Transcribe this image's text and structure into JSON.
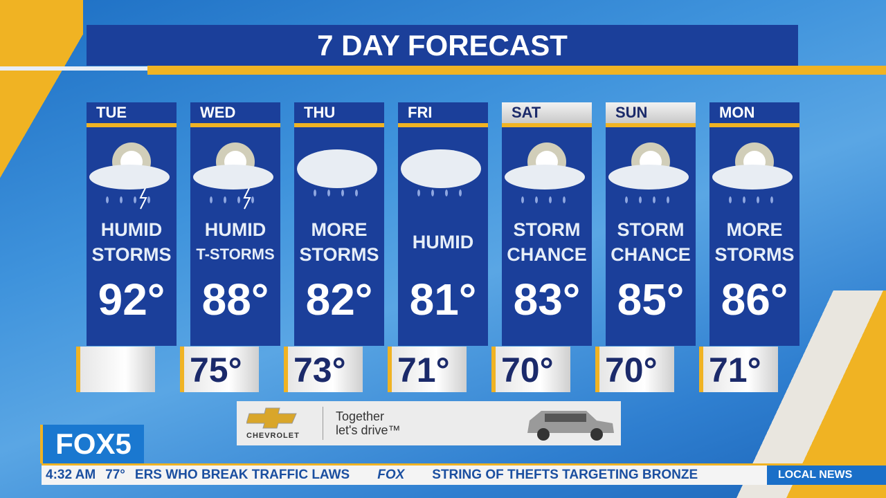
{
  "title": "7 DAY FORECAST",
  "days": [
    {
      "day": "TUE",
      "cond1": "HUMID",
      "cond2": "STORMS",
      "high": "92°",
      "low": "",
      "icon": "sun-cloud-lightning-icon"
    },
    {
      "day": "WED",
      "cond1": "HUMID",
      "cond2": "T-STORMS",
      "high": "88°",
      "low": "75°",
      "icon": "sun-cloud-lightning-icon"
    },
    {
      "day": "THU",
      "cond1": "MORE",
      "cond2": "STORMS",
      "high": "82°",
      "low": "73°",
      "icon": "cloud-rain-icon"
    },
    {
      "day": "FRI",
      "cond1": "",
      "cond2": "HUMID",
      "high": "81°",
      "low": "71°",
      "icon": "cloud-rain-icon"
    },
    {
      "day": "SAT",
      "cond1": "STORM",
      "cond2": "CHANCE",
      "high": "83°",
      "low": "70°",
      "icon": "sun-cloud-rain-icon"
    },
    {
      "day": "SUN",
      "cond1": "STORM",
      "cond2": "CHANCE",
      "high": "85°",
      "low": "70°",
      "icon": "sun-cloud-rain-icon"
    },
    {
      "day": "MON",
      "cond1": "MORE",
      "cond2": "STORMS",
      "high": "86°",
      "low": "71°",
      "icon": "sun-cloud-rain-icon"
    }
  ],
  "ad": {
    "brand": "CHEVROLET",
    "tagline1": "Together",
    "tagline2": "let's drive™"
  },
  "logo": "FOX5",
  "ticker": {
    "time": "4:32 AM",
    "temp": "77°",
    "story1": "ERS WHO BREAK TRAFFIC LAWS",
    "network": "FOX",
    "story2": "STRING OF THEFTS TARGETING BRONZE"
  },
  "section": "LOCAL NEWS"
}
